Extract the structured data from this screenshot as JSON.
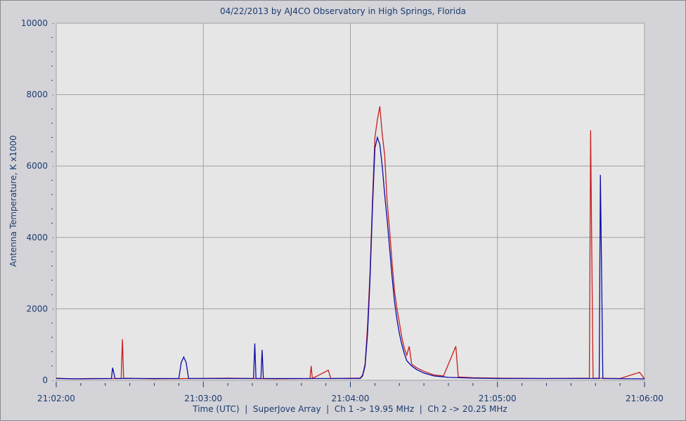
{
  "chart_data": {
    "type": "line",
    "title": "04/22/2013  by  AJ4CO Observatory  in  High Springs, Florida",
    "xlabel": "Time (UTC)  |  SuperJove Array  |  Ch 1 -> 19.95 MHz  |  Ch 2 -> 20.25 MHz",
    "ylabel": "Antenna Temperature, K x1000",
    "xlim": [
      "21:02:00",
      "21:06:00"
    ],
    "ylim": [
      0,
      10000
    ],
    "x_ticks": [
      "21:02:00",
      "21:03:00",
      "21:04:00",
      "21:05:00",
      "21:06:00"
    ],
    "y_ticks": [
      0,
      2000,
      4000,
      6000,
      8000,
      10000
    ],
    "grid": true,
    "legend": "none",
    "colors": {
      "plot_bg": "#e6e6e6",
      "page_bg": "#d4d3d8",
      "grid": "#a0a0a0",
      "ch1": "#c81e1e",
      "ch2": "#0a0aa8",
      "text": "#1b3c6e"
    },
    "series": [
      {
        "color": "#c81e1e",
        "points": [
          [
            "21:02:00",
            60
          ],
          [
            "21:02:07",
            40
          ],
          [
            "21:02:14",
            50
          ],
          [
            "21:02:26.5",
            50
          ],
          [
            "21:02:27",
            1150
          ],
          [
            "21:02:27.5",
            60
          ],
          [
            "21:02:40",
            40
          ],
          [
            "21:02:55",
            50
          ],
          [
            "21:03:10",
            60
          ],
          [
            "21:03:30",
            40
          ],
          [
            "21:03:43.5",
            50
          ],
          [
            "21:03:44",
            400
          ],
          [
            "21:03:44.5",
            50
          ],
          [
            "21:03:51",
            280
          ],
          [
            "21:03:52",
            50
          ],
          [
            "21:04:04",
            60
          ],
          [
            "21:04:05",
            150
          ],
          [
            "21:04:06",
            450
          ],
          [
            "21:04:07",
            1500
          ],
          [
            "21:04:08",
            3000
          ],
          [
            "21:04:09",
            5000
          ],
          [
            "21:04:10",
            6800
          ],
          [
            "21:04:11",
            7300
          ],
          [
            "21:04:12",
            7670
          ],
          [
            "21:04:13",
            6900
          ],
          [
            "21:04:14",
            6300
          ],
          [
            "21:04:15",
            5000
          ],
          [
            "21:04:16",
            4200
          ],
          [
            "21:04:17",
            3300
          ],
          [
            "21:04:18",
            2500
          ],
          [
            "21:04:19",
            2000
          ],
          [
            "21:04:20",
            1600
          ],
          [
            "21:04:21",
            1200
          ],
          [
            "21:04:22",
            900
          ],
          [
            "21:04:23",
            700
          ],
          [
            "21:04:24",
            950
          ],
          [
            "21:04:25",
            450
          ],
          [
            "21:04:27",
            350
          ],
          [
            "21:04:30",
            250
          ],
          [
            "21:04:34",
            150
          ],
          [
            "21:04:38",
            120
          ],
          [
            "21:04:43",
            950
          ],
          [
            "21:04:44",
            90
          ],
          [
            "21:04:50",
            70
          ],
          [
            "21:05:00",
            60
          ],
          [
            "21:05:20",
            50
          ],
          [
            "21:05:37.5",
            60
          ],
          [
            "21:05:38",
            7000
          ],
          [
            "21:05:38.5",
            3500
          ],
          [
            "21:05:39",
            60
          ],
          [
            "21:05:50",
            50
          ],
          [
            "21:05:58",
            220
          ],
          [
            "21:06:00",
            40
          ]
        ]
      },
      {
        "color": "#0a0aa8",
        "points": [
          [
            "21:02:00",
            50
          ],
          [
            "21:02:10",
            40
          ],
          [
            "21:02:22.5",
            50
          ],
          [
            "21:02:23",
            350
          ],
          [
            "21:02:24",
            50
          ],
          [
            "21:02:50",
            50
          ],
          [
            "21:02:51",
            500
          ],
          [
            "21:02:52",
            650
          ],
          [
            "21:02:53",
            500
          ],
          [
            "21:02:54",
            50
          ],
          [
            "21:03:20.5",
            50
          ],
          [
            "21:03:21",
            1030
          ],
          [
            "21:03:21.5",
            50
          ],
          [
            "21:03:23.5",
            50
          ],
          [
            "21:03:24",
            850
          ],
          [
            "21:03:24.5",
            50
          ],
          [
            "21:04:04",
            50
          ],
          [
            "21:04:05",
            120
          ],
          [
            "21:04:06",
            400
          ],
          [
            "21:04:07",
            1300
          ],
          [
            "21:04:08",
            2800
          ],
          [
            "21:04:09",
            4800
          ],
          [
            "21:04:10",
            6500
          ],
          [
            "21:04:11",
            6800
          ],
          [
            "21:04:12",
            6600
          ],
          [
            "21:04:13",
            6000
          ],
          [
            "21:04:14",
            5200
          ],
          [
            "21:04:15",
            4500
          ],
          [
            "21:04:16",
            3700
          ],
          [
            "21:04:17",
            2900
          ],
          [
            "21:04:18",
            2200
          ],
          [
            "21:04:19",
            1700
          ],
          [
            "21:04:20",
            1300
          ],
          [
            "21:04:21",
            1000
          ],
          [
            "21:04:22",
            750
          ],
          [
            "21:04:23",
            550
          ],
          [
            "21:04:25",
            400
          ],
          [
            "21:04:27",
            300
          ],
          [
            "21:04:30",
            200
          ],
          [
            "21:04:34",
            120
          ],
          [
            "21:04:40",
            80
          ],
          [
            "21:04:50",
            60
          ],
          [
            "21:05:00",
            50
          ],
          [
            "21:05:25",
            50
          ],
          [
            "21:05:41.5",
            50
          ],
          [
            "21:05:42",
            5750
          ],
          [
            "21:05:42.5",
            2900
          ],
          [
            "21:05:43",
            50
          ],
          [
            "21:06:00",
            40
          ]
        ]
      }
    ]
  }
}
